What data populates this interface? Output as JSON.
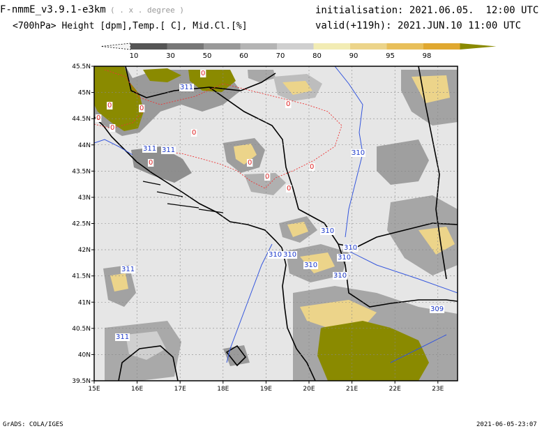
{
  "header": {
    "model": "F-nmmE_v3.9.1-e3km",
    "units_note": "( . x . degree )",
    "variables": "<700hPa> Height [dpm],Temp.[ C], Mid.Cl.[%]",
    "initialisation": "initialisation: 2021.06.05.  12:00 UTC",
    "valid": "valid(+119h): 2021.JUN.10 11:00 UTC"
  },
  "colorbar": {
    "labels": [
      "10",
      "30",
      "50",
      "60",
      "70",
      "80",
      "90",
      "95",
      "98"
    ],
    "colors": [
      "#555555",
      "#777777",
      "#999999",
      "#b4b4b4",
      "#cfcfcf",
      "#f2ecb4",
      "#ecd48a",
      "#e8bf5a",
      "#e0a830",
      "#8a8a00"
    ]
  },
  "map": {
    "lat_labels": [
      "45.5N",
      "45N",
      "44.5N",
      "44N",
      "43.5N",
      "43N",
      "42.5N",
      "42N",
      "41.5N",
      "41N",
      "40.5N",
      "40N",
      "39.5N"
    ],
    "lon_labels": [
      "15E",
      "16E",
      "17E",
      "18E",
      "19E",
      "20E",
      "21E",
      "22E",
      "23E"
    ],
    "height_contours": [
      {
        "text": "311"
      },
      {
        "text": "311"
      },
      {
        "text": "311"
      },
      {
        "text": "310"
      },
      {
        "text": "310"
      },
      {
        "text": "310"
      },
      {
        "text": "310"
      },
      {
        "text": "310"
      },
      {
        "text": "310"
      },
      {
        "text": "310"
      },
      {
        "text": "310"
      },
      {
        "text": "311"
      },
      {
        "text": "311"
      },
      {
        "text": "309"
      }
    ],
    "temp_contours": [
      {
        "text": "0"
      },
      {
        "text": "0"
      },
      {
        "text": "0"
      },
      {
        "text": "0"
      },
      {
        "text": "0"
      },
      {
        "text": "0"
      },
      {
        "text": "0"
      },
      {
        "text": "0"
      },
      {
        "text": "0"
      },
      {
        "text": "0"
      },
      {
        "text": "0"
      },
      {
        "text": "0"
      }
    ]
  },
  "footer": {
    "left": "GrADS: COLA/IGES",
    "right": "2021-06-05-23:07"
  }
}
